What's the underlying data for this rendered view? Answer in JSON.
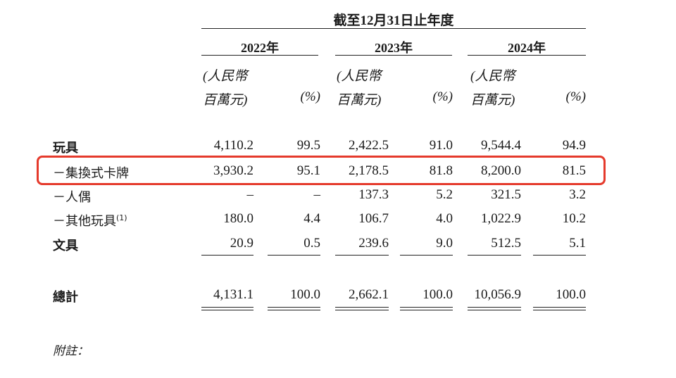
{
  "header": {
    "period_title": "截至12月31日止年度",
    "years": [
      "2022年",
      "2023年",
      "2024年"
    ],
    "unit_line1": "(人民幣",
    "unit_line2": "百萬元)",
    "pct_label": "(%)"
  },
  "rows": [
    {
      "label": "玩具",
      "bold": true,
      "values": [
        "4,110.2",
        "99.5",
        "2,422.5",
        "91.0",
        "9,544.4",
        "94.9"
      ]
    },
    {
      "label": "－集換式卡牌",
      "values": [
        "3,930.2",
        "95.1",
        "2,178.5",
        "81.8",
        "8,200.0",
        "81.5"
      ]
    },
    {
      "label": "－人偶",
      "values": [
        "–",
        "–",
        "137.3",
        "5.2",
        "321.5",
        "3.2"
      ]
    },
    {
      "label": "－其他玩具",
      "sup": "(1)",
      "values": [
        "180.0",
        "4.4",
        "106.7",
        "4.0",
        "1,022.9",
        "10.2"
      ]
    },
    {
      "label": "文具",
      "bold": true,
      "values": [
        "20.9",
        "0.5",
        "239.6",
        "9.0",
        "512.5",
        "5.1"
      ]
    }
  ],
  "total": {
    "label": "總計",
    "values": [
      "4,131.1",
      "100.0",
      "2,662.1",
      "100.0",
      "10,056.9",
      "100.0"
    ]
  },
  "note": "附註："
}
